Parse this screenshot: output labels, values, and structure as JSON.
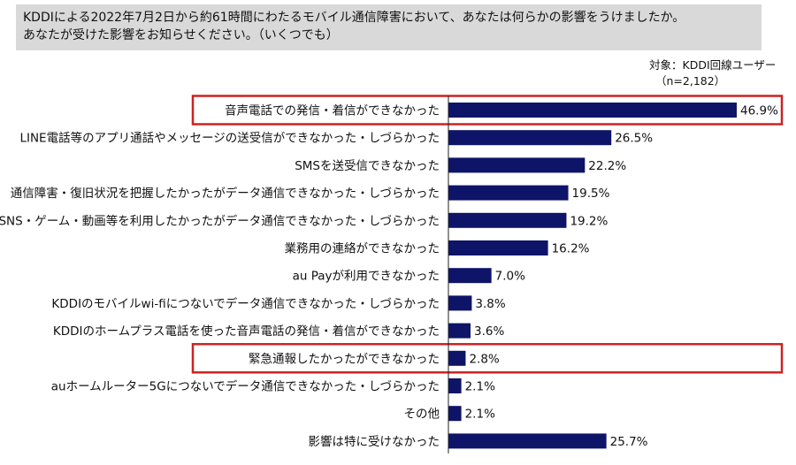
{
  "question": {
    "line1": "KDDIによる2022年7月2日から約61時間にわたるモバイル通信障害において、あなたは何らかの影響をうけましたか。",
    "line2": "あなたが受けた影響をお知らせください。（いくつでも）"
  },
  "note": {
    "target": "対象：KDDI回線ユーザー",
    "n": "（n=2,182）"
  },
  "colors": {
    "bar": "#0e1468",
    "highlight": "#cc2222",
    "question_bg": "#d9d9d9"
  },
  "chart_data": {
    "type": "bar",
    "orientation": "horizontal",
    "unit": "%",
    "xlim": [
      0,
      50
    ],
    "grid": false,
    "highlighted": [
      "音声電話での発信・着信ができなかった",
      "緊急通報したかったができなかった"
    ],
    "categories": [
      "音声電話での発信・着信ができなかった",
      "LINE電話等のアプリ通話やメッセージの送受信ができなかった・しづらかった",
      "SMSを送受信できなかった",
      "通信障害・復旧状況を把握したかったがデータ通信できなかった・しづらかった",
      "SNS・ゲーム・動画等を利用したかったがデータ通信できなかった・しづらかった",
      "業務用の連絡ができなかった",
      "au Payが利用できなかった",
      "KDDIのモバイルwi-fiにつないでデータ通信できなかった・しづらかった",
      "KDDIのホームプラス電話を使った音声電話の発信・着信ができなかった",
      "緊急通報したかったができなかった",
      "auホームルーター5Gにつないでデータ通信できなかった・しづらかった",
      "その他",
      "影響は特に受けなかった"
    ],
    "values": [
      46.9,
      26.5,
      22.2,
      19.5,
      19.2,
      16.2,
      7.0,
      3.8,
      3.6,
      2.8,
      2.1,
      2.1,
      25.7
    ],
    "value_labels": [
      "46.9%",
      "26.5%",
      "22.2%",
      "19.5%",
      "19.2%",
      "16.2%",
      "7.0%",
      "3.8%",
      "3.6%",
      "2.8%",
      "2.1%",
      "2.1%",
      "25.7%"
    ]
  }
}
